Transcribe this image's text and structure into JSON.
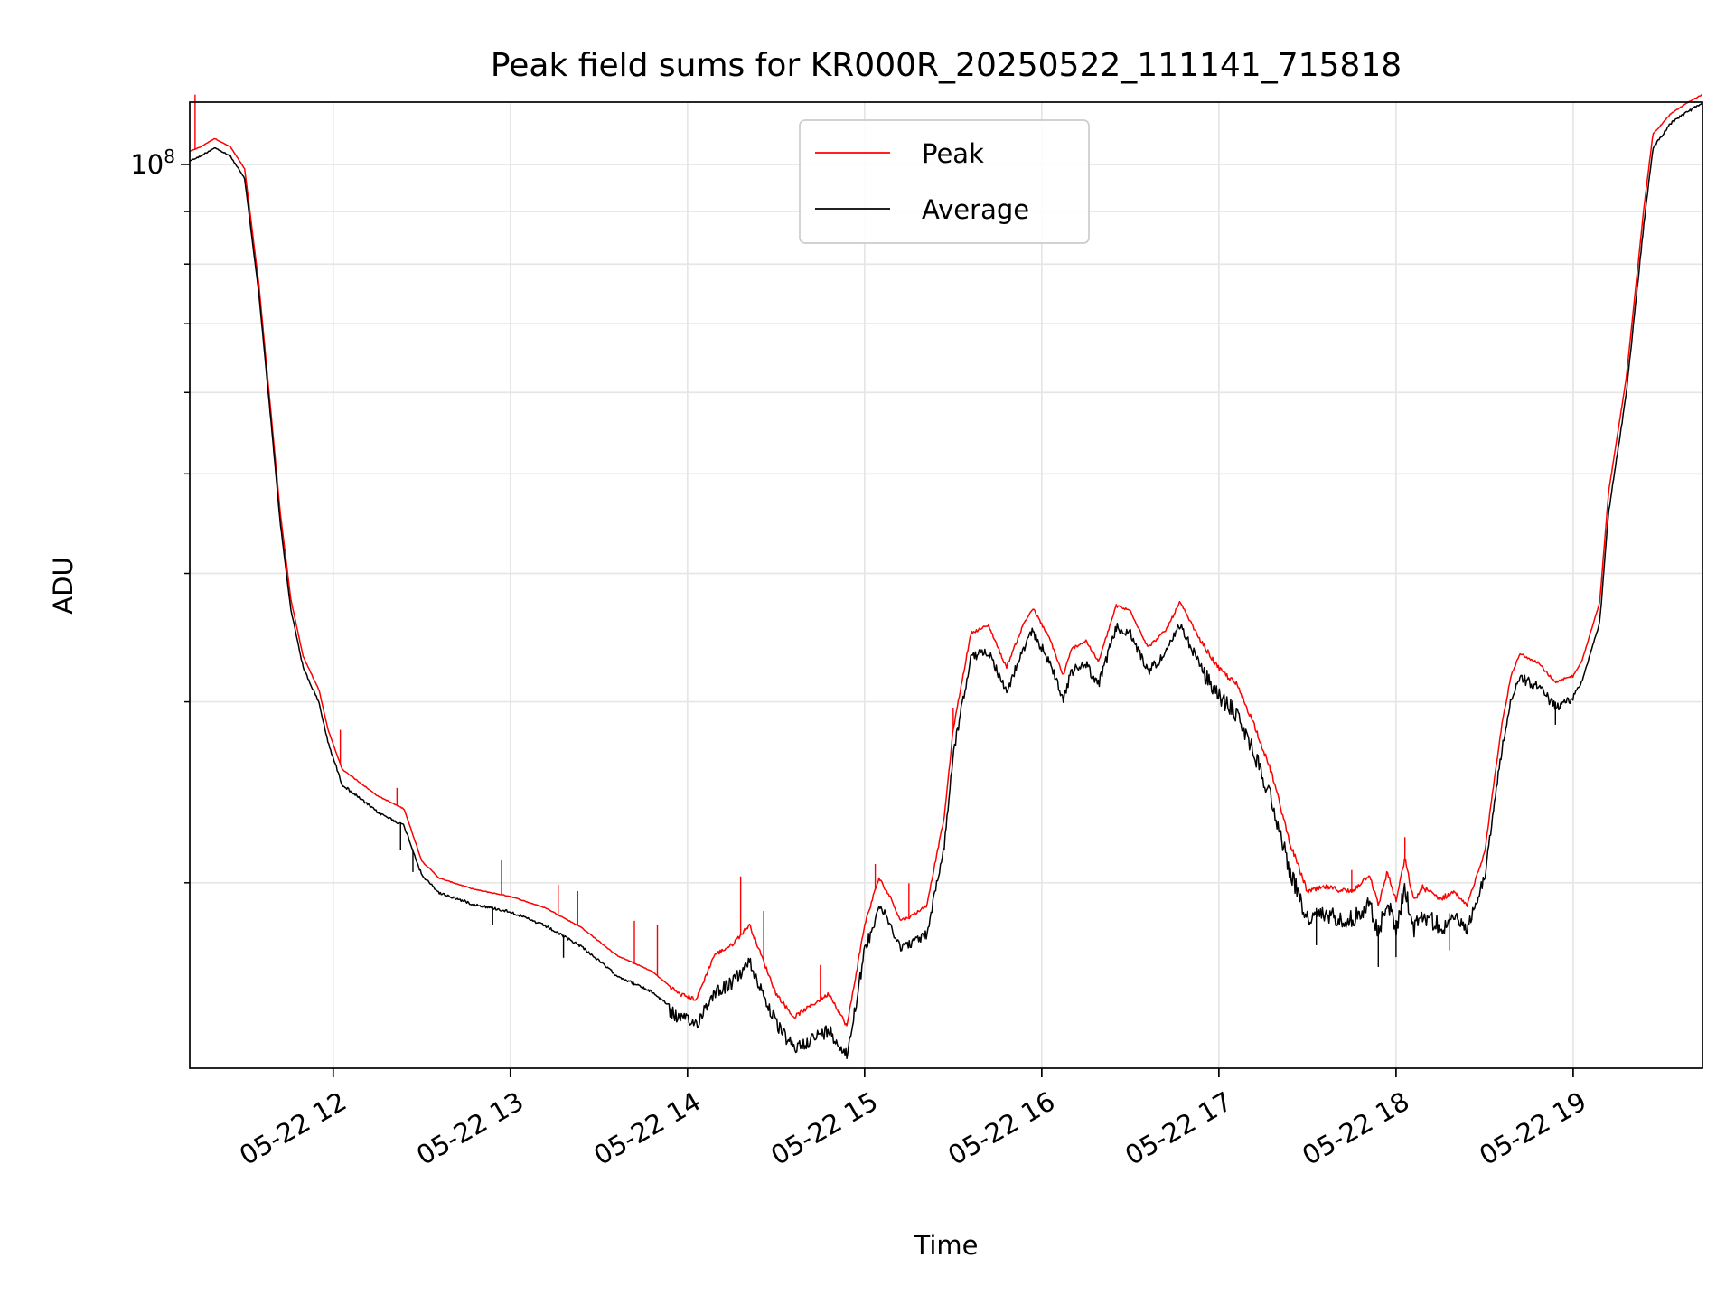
{
  "chart_data": {
    "type": "line",
    "title": "Peak field sums for KR000R_20250522_111141_715818",
    "xlabel": "Time",
    "ylabel": "ADU",
    "y_scale": "log",
    "y_tick_labels": [
      {
        "value": 100000000,
        "base": "10",
        "exp": "8"
      }
    ],
    "ylim": [
      13200000,
      115000000
    ],
    "x_unit": "hour of 2025-05-22",
    "xlim": [
      11.19,
      19.73
    ],
    "x_ticks": [
      {
        "value": 12,
        "label": "05-22 12"
      },
      {
        "value": 13,
        "label": "05-22 13"
      },
      {
        "value": 14,
        "label": "05-22 14"
      },
      {
        "value": 15,
        "label": "05-22 15"
      },
      {
        "value": 16,
        "label": "05-22 16"
      },
      {
        "value": 17,
        "label": "05-22 17"
      },
      {
        "value": 18,
        "label": "05-22 18"
      },
      {
        "value": 19,
        "label": "05-22 19"
      }
    ],
    "grid": true,
    "legend_position": "upper center",
    "series": [
      {
        "name": "Peak",
        "color": "#ff0000"
      },
      {
        "name": "Average",
        "color": "#000000"
      }
    ],
    "x": [
      11.19,
      11.25,
      11.33,
      11.42,
      11.5,
      11.58,
      11.65,
      11.7,
      11.76,
      11.83,
      11.92,
      11.97,
      12.05,
      12.25,
      12.4,
      12.5,
      12.6,
      12.8,
      13.0,
      13.2,
      13.4,
      13.6,
      13.8,
      13.95,
      14.05,
      14.15,
      14.25,
      14.35,
      14.5,
      14.6,
      14.7,
      14.8,
      14.9,
      15.0,
      15.08,
      15.15,
      15.2,
      15.25,
      15.35,
      15.45,
      15.5,
      15.6,
      15.7,
      15.8,
      15.9,
      15.95,
      16.05,
      16.12,
      16.17,
      16.25,
      16.32,
      16.42,
      16.5,
      16.6,
      16.7,
      16.78,
      16.9,
      17.0,
      17.1,
      17.2,
      17.3,
      17.4,
      17.5,
      17.6,
      17.75,
      17.85,
      17.9,
      17.95,
      18.0,
      18.05,
      18.1,
      18.15,
      18.25,
      18.33,
      18.4,
      18.5,
      18.6,
      18.65,
      18.7,
      18.8,
      18.9,
      19.0,
      19.05,
      19.15,
      19.2,
      19.3,
      19.4,
      19.45,
      19.55,
      19.65,
      19.73
    ],
    "average": [
      101000000,
      102000000,
      104000000,
      102000000,
      97000000,
      75000000,
      56000000,
      45000000,
      37000000,
      32500000,
      30000000,
      27500000,
      25000000,
      23500000,
      22800000,
      20400000,
      19600000,
      19100000,
      18800000,
      18200000,
      17400000,
      16300000,
      15700000,
      15000000,
      14800000,
      15900000,
      16200000,
      17000000,
      14800000,
      14000000,
      14300000,
      14600000,
      13800000,
      17400000,
      19300000,
      18300000,
      17500000,
      17600000,
      18000000,
      22000000,
      27000000,
      33500000,
      34000000,
      31000000,
      34200000,
      35500000,
      33000000,
      30500000,
      32500000,
      33000000,
      31500000,
      35800000,
      35300000,
      32500000,
      33800000,
      36000000,
      32800000,
      31000000,
      29800000,
      27300000,
      24500000,
      21000000,
      18800000,
      19000000,
      18800000,
      19500000,
      18200000,
      19600000,
      18400000,
      20200000,
      18400000,
      19000000,
      18500000,
      18800000,
      18200000,
      20500000,
      27500000,
      30500000,
      32000000,
      31400000,
      30000000,
      30500000,
      31500000,
      36000000,
      46000000,
      60000000,
      88000000,
      104000000,
      110000000,
      113000000,
      115000000
    ],
    "peak": [
      103000000,
      104000000,
      106000000,
      104000000,
      99000000,
      76500000,
      57000000,
      46000000,
      37800000,
      33200000,
      30800000,
      28200000,
      25800000,
      24300000,
      23600000,
      21000000,
      20200000,
      19700000,
      19400000,
      18900000,
      18100000,
      17000000,
      16400000,
      15600000,
      15400000,
      17000000,
      17400000,
      18200000,
      15600000,
      14800000,
      15200000,
      15600000,
      14500000,
      18200000,
      20200000,
      19300000,
      18400000,
      18500000,
      19000000,
      23200000,
      28200000,
      35000000,
      35600000,
      32400000,
      35800000,
      37000000,
      34400000,
      31800000,
      33800000,
      34400000,
      32800000,
      37200000,
      36800000,
      33900000,
      35200000,
      37500000,
      34300000,
      32300000,
      31200000,
      28500000,
      25500000,
      21900000,
      19600000,
      19800000,
      19600000,
      20400000,
      19000000,
      20500000,
      19200000,
      21100000,
      19200000,
      19800000,
      19300000,
      19600000,
      19000000,
      21400000,
      28700000,
      31800000,
      33400000,
      32800000,
      31300000,
      31800000,
      32900000,
      37500000,
      48000000,
      62000000,
      91000000,
      107000000,
      112000000,
      115000000,
      117000000
    ]
  }
}
